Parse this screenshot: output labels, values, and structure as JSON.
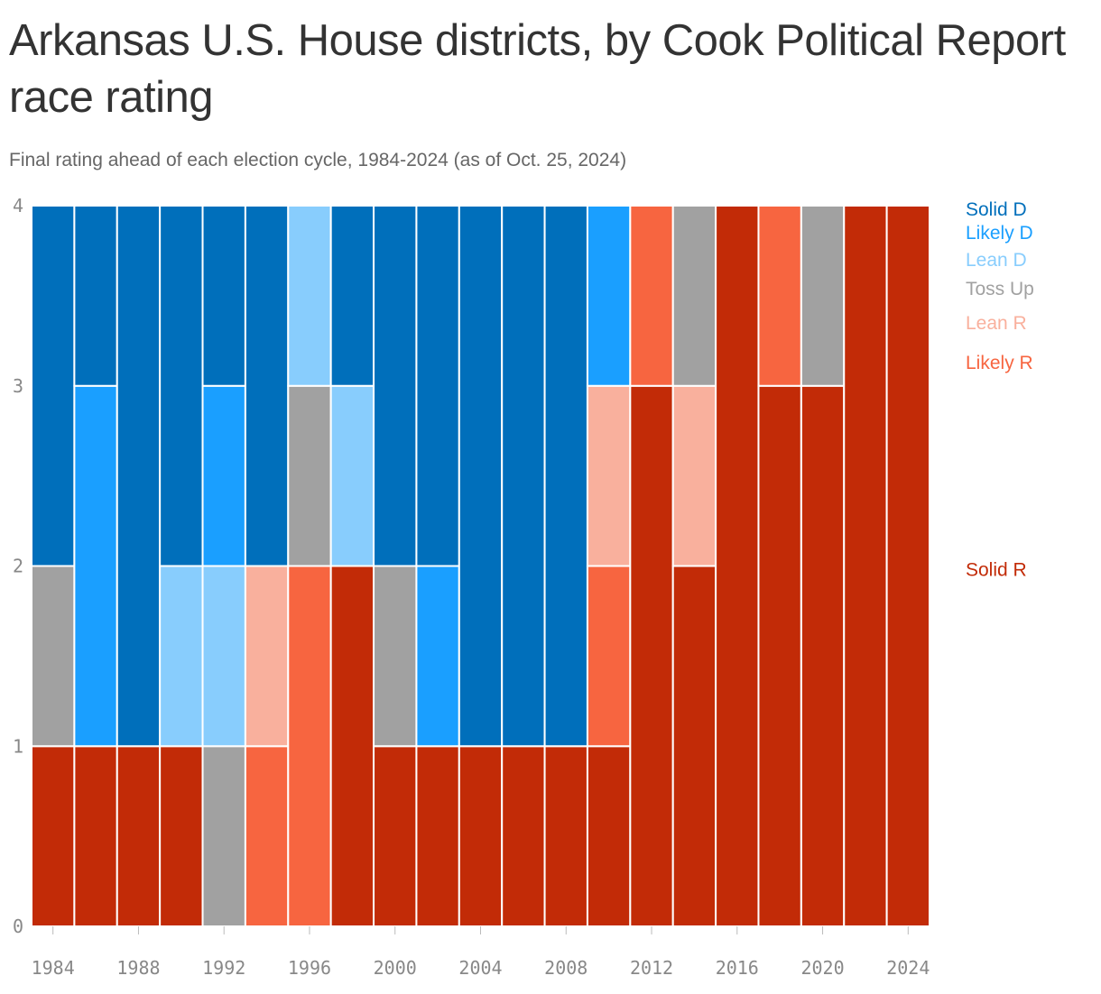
{
  "title": "Arkansas U.S. House districts, by Cook Political Report race rating",
  "subtitle": "Final rating ahead of each election cycle, 1984-2024 (as of Oct. 25, 2024)",
  "chart_data": {
    "type": "bar",
    "stacked": true,
    "categories": [
      1984,
      1986,
      1988,
      1990,
      1992,
      1994,
      1996,
      1998,
      2000,
      2002,
      2004,
      2006,
      2008,
      2010,
      2012,
      2014,
      2016,
      2018,
      2020,
      2022,
      2024
    ],
    "x_ticks": [
      "1984",
      "1988",
      "1992",
      "1996",
      "2000",
      "2004",
      "2008",
      "2012",
      "2016",
      "2020",
      "2024"
    ],
    "y_ticks": [
      "0",
      "1",
      "2",
      "3",
      "4"
    ],
    "ylim": [
      0,
      4
    ],
    "legend_position": "right",
    "series": [
      {
        "name": "Solid R",
        "color": "#c22b07",
        "values": [
          1,
          1,
          1,
          1,
          0,
          0,
          0,
          2,
          1,
          1,
          1,
          1,
          1,
          1,
          3,
          2,
          4,
          3,
          3,
          4,
          4
        ]
      },
      {
        "name": "Likely R",
        "color": "#f76540",
        "values": [
          0,
          0,
          0,
          0,
          0,
          1,
          2,
          0,
          0,
          0,
          0,
          0,
          0,
          1,
          1,
          0,
          0,
          1,
          0,
          0,
          0
        ]
      },
      {
        "name": "Lean R",
        "color": "#f9b09d",
        "values": [
          0,
          0,
          0,
          0,
          0,
          1,
          0,
          0,
          0,
          0,
          0,
          0,
          0,
          1,
          0,
          1,
          0,
          0,
          0,
          0,
          0
        ]
      },
      {
        "name": "Toss Up",
        "color": "#a1a1a1",
        "values": [
          1,
          0,
          0,
          0,
          1,
          0,
          1,
          0,
          1,
          0,
          0,
          0,
          0,
          0,
          0,
          1,
          0,
          0,
          1,
          0,
          0
        ]
      },
      {
        "name": "Lean D",
        "color": "#88cdfd",
        "values": [
          0,
          0,
          0,
          1,
          1,
          0,
          1,
          1,
          0,
          0,
          0,
          0,
          0,
          0,
          0,
          0,
          0,
          0,
          0,
          0,
          0
        ]
      },
      {
        "name": "Likely D",
        "color": "#1a9fff",
        "values": [
          0,
          2,
          0,
          0,
          1,
          0,
          0,
          0,
          0,
          1,
          0,
          0,
          0,
          1,
          0,
          0,
          0,
          0,
          0,
          0,
          0
        ]
      },
      {
        "name": "Solid D",
        "color": "#006fbb",
        "values": [
          2,
          1,
          3,
          2,
          1,
          2,
          0,
          1,
          2,
          2,
          3,
          3,
          3,
          0,
          0,
          0,
          0,
          0,
          0,
          0,
          0
        ]
      }
    ],
    "legend": [
      {
        "name": "Solid D",
        "color": "#006fbb",
        "value": 4.0
      },
      {
        "name": "Likely D",
        "color": "#1a9fff",
        "value": 3.87
      },
      {
        "name": "Lean D",
        "color": "#88cdfd",
        "value": 3.72
      },
      {
        "name": "Toss Up",
        "color": "#a1a1a1",
        "value": 3.56
      },
      {
        "name": "Lean R",
        "color": "#f9b09d",
        "value": 3.37
      },
      {
        "name": "Likely R",
        "color": "#f76540",
        "value": 3.15
      },
      {
        "name": "Solid R",
        "color": "#c22b07",
        "value": 2.0
      }
    ]
  }
}
